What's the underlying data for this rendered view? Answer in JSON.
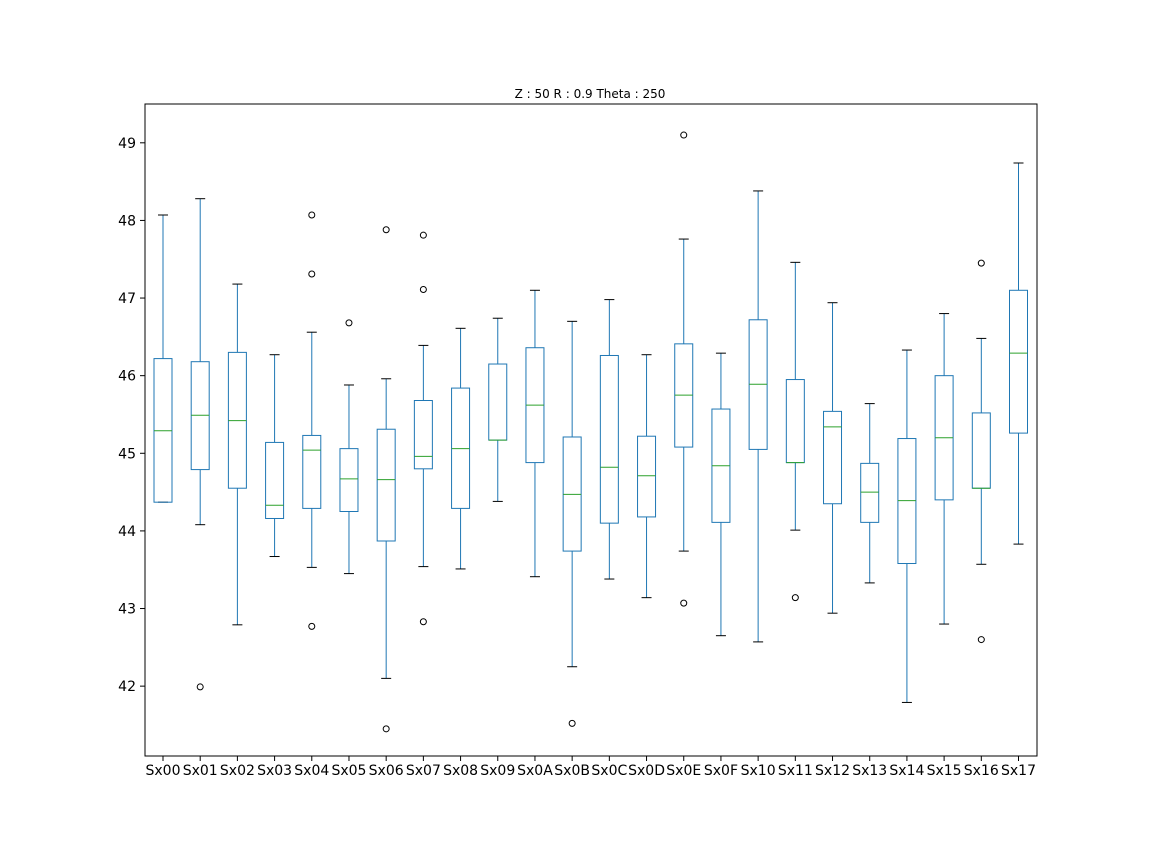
{
  "chart_data": {
    "type": "box",
    "title": "Z : 50 R : 0.9  Theta : 250",
    "xlabel": "",
    "ylabel": "",
    "ylim": [
      41.1,
      49.5
    ],
    "yticks": [
      42,
      43,
      44,
      45,
      46,
      47,
      48,
      49
    ],
    "grid": false,
    "colors": {
      "box": "#1f77b4",
      "median": "#2ca02c",
      "whisker_cap": "#000000",
      "flier": "#000000"
    },
    "categories": [
      "Sx00",
      "Sx01",
      "Sx02",
      "Sx03",
      "Sx04",
      "Sx05",
      "Sx06",
      "Sx07",
      "Sx08",
      "Sx09",
      "Sx0A",
      "Sx0B",
      "Sx0C",
      "Sx0D",
      "Sx0E",
      "Sx0F",
      "Sx10",
      "Sx11",
      "Sx12",
      "Sx13",
      "Sx14",
      "Sx15",
      "Sx16",
      "Sx17"
    ],
    "boxes": [
      {
        "whislo": 44.37,
        "q1": 44.37,
        "med": 45.29,
        "q3": 46.22,
        "whishi": 48.07,
        "fliers": []
      },
      {
        "whislo": 44.08,
        "q1": 44.79,
        "med": 45.49,
        "q3": 46.18,
        "whishi": 48.28,
        "fliers": [
          41.99
        ]
      },
      {
        "whislo": 42.79,
        "q1": 44.55,
        "med": 45.42,
        "q3": 46.3,
        "whishi": 47.18,
        "fliers": []
      },
      {
        "whislo": 43.67,
        "q1": 44.16,
        "med": 44.33,
        "q3": 45.14,
        "whishi": 46.27,
        "fliers": []
      },
      {
        "whislo": 43.53,
        "q1": 44.29,
        "med": 45.04,
        "q3": 45.23,
        "whishi": 46.56,
        "fliers": [
          48.07,
          47.31,
          42.77
        ]
      },
      {
        "whislo": 43.45,
        "q1": 44.25,
        "med": 44.67,
        "q3": 45.06,
        "whishi": 45.88,
        "fliers": [
          46.68
        ]
      },
      {
        "whislo": 42.1,
        "q1": 43.87,
        "med": 44.66,
        "q3": 45.31,
        "whishi": 45.96,
        "fliers": [
          47.88,
          41.45
        ]
      },
      {
        "whislo": 43.54,
        "q1": 44.8,
        "med": 44.96,
        "q3": 45.68,
        "whishi": 46.39,
        "fliers": [
          47.81,
          47.11,
          42.83
        ]
      },
      {
        "whislo": 43.51,
        "q1": 44.29,
        "med": 45.06,
        "q3": 45.84,
        "whishi": 46.61,
        "fliers": []
      },
      {
        "whislo": 44.38,
        "q1": 45.17,
        "med": 45.17,
        "q3": 46.15,
        "whishi": 46.74,
        "fliers": []
      },
      {
        "whislo": 43.41,
        "q1": 44.88,
        "med": 45.62,
        "q3": 46.36,
        "whishi": 47.1,
        "fliers": []
      },
      {
        "whislo": 42.25,
        "q1": 43.74,
        "med": 44.47,
        "q3": 45.21,
        "whishi": 46.7,
        "fliers": [
          41.52
        ]
      },
      {
        "whislo": 43.38,
        "q1": 44.1,
        "med": 44.82,
        "q3": 46.26,
        "whishi": 46.98,
        "fliers": []
      },
      {
        "whislo": 43.14,
        "q1": 44.18,
        "med": 44.71,
        "q3": 45.22,
        "whishi": 46.27,
        "fliers": []
      },
      {
        "whislo": 43.74,
        "q1": 45.08,
        "med": 45.75,
        "q3": 46.41,
        "whishi": 47.76,
        "fliers": [
          49.1,
          43.07
        ]
      },
      {
        "whislo": 42.65,
        "q1": 44.11,
        "med": 44.84,
        "q3": 45.57,
        "whishi": 46.29,
        "fliers": []
      },
      {
        "whislo": 42.57,
        "q1": 45.05,
        "med": 45.89,
        "q3": 46.72,
        "whishi": 48.38,
        "fliers": []
      },
      {
        "whislo": 44.01,
        "q1": 44.88,
        "med": 44.88,
        "q3": 45.95,
        "whishi": 47.46,
        "fliers": [
          43.14
        ]
      },
      {
        "whislo": 42.94,
        "q1": 44.35,
        "med": 45.34,
        "q3": 45.54,
        "whishi": 46.94,
        "fliers": []
      },
      {
        "whislo": 43.33,
        "q1": 44.11,
        "med": 44.5,
        "q3": 44.87,
        "whishi": 45.64,
        "fliers": []
      },
      {
        "whislo": 41.79,
        "q1": 43.58,
        "med": 44.39,
        "q3": 45.19,
        "whishi": 46.33,
        "fliers": []
      },
      {
        "whislo": 42.8,
        "q1": 44.4,
        "med": 45.2,
        "q3": 46.0,
        "whishi": 46.8,
        "fliers": []
      },
      {
        "whislo": 43.57,
        "q1": 44.55,
        "med": 44.55,
        "q3": 45.52,
        "whishi": 46.48,
        "fliers": [
          47.45,
          42.6
        ]
      },
      {
        "whislo": 43.83,
        "q1": 45.26,
        "med": 46.29,
        "q3": 47.1,
        "whishi": 48.74,
        "fliers": []
      }
    ]
  }
}
